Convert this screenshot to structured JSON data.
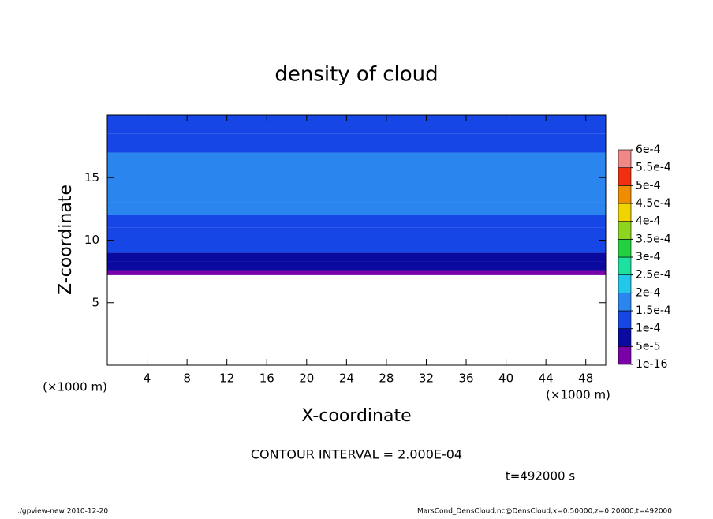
{
  "chart_data": {
    "type": "contour",
    "title": "density of cloud",
    "xlabel": "X-coordinate",
    "ylabel": "Z-coordinate",
    "x_unit_left": "(×1000 m)",
    "x_unit_right": "(×1000 m)",
    "xlim": [
      0,
      50
    ],
    "ylim": [
      0,
      20
    ],
    "xticks": [
      4,
      8,
      12,
      16,
      20,
      24,
      28,
      32,
      36,
      40,
      44,
      48
    ],
    "yticks": [
      5,
      10,
      15
    ],
    "field": {
      "bins": [
        0,
        7.2,
        7.6,
        8.3,
        9,
        10,
        11,
        12,
        13,
        17,
        18.5,
        20
      ],
      "values": [
        null,
        3e-05,
        6e-05,
        8e-05,
        0.000105,
        0.00012,
        0.00014,
        0.00016,
        0.00017,
        0.00014,
        0.00012
      ]
    },
    "levels": [
      {
        "value": 1e-16,
        "label": "1e-16"
      },
      {
        "value": 5e-05,
        "label": "5e-5"
      },
      {
        "value": 0.0001,
        "label": "1e-4"
      },
      {
        "value": 0.00015,
        "label": "1.5e-4"
      },
      {
        "value": 0.0002,
        "label": "2e-4"
      },
      {
        "value": 0.00025,
        "label": "2.5e-4"
      },
      {
        "value": 0.0003,
        "label": "3e-4"
      },
      {
        "value": 0.00035,
        "label": "3.5e-4"
      },
      {
        "value": 0.0004,
        "label": "4e-4"
      },
      {
        "value": 0.00045,
        "label": "4.5e-4"
      },
      {
        "value": 0.0005,
        "label": "5e-4"
      },
      {
        "value": 0.00055,
        "label": "5.5e-4"
      },
      {
        "value": 0.0006,
        "label": "6e-4"
      }
    ],
    "colors": [
      "#7a00a8",
      "#0a0aa0",
      "#1646e6",
      "#2a86ee",
      "#22c8ea",
      "#1ee0a0",
      "#22d040",
      "#8ed61e",
      "#f0d400",
      "#f08c00",
      "#f03010",
      "#f08888"
    ],
    "contour_interval": "CONTOUR INTERVAL = 2.000E-04",
    "time_label": "t=492000 s",
    "footer_left": "./gpview-new   2010-12-20",
    "footer_right": "MarsCond_DensCloud.nc@DensCloud,x=0:50000,z=0:20000,t=492000"
  }
}
